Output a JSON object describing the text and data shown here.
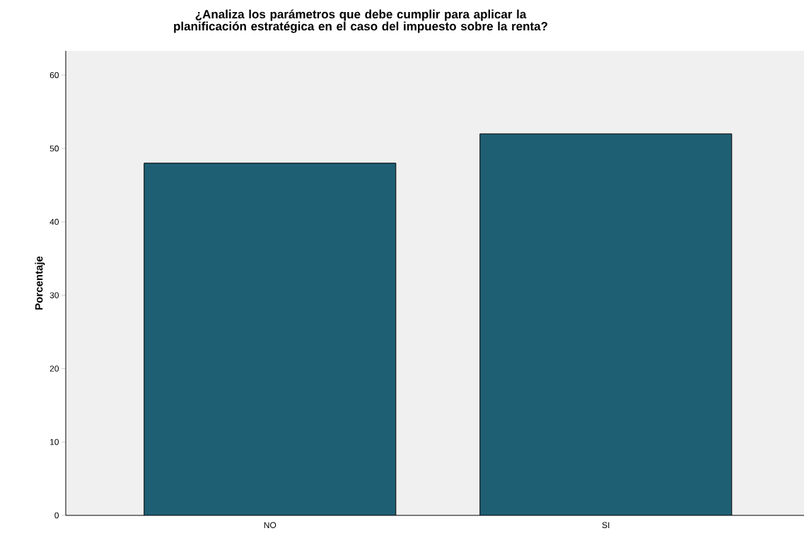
{
  "chart_data": {
    "type": "bar",
    "title": "¿Analiza los parámetros que debe cumplir para aplicar la planificación estratégica en el caso del impuesto sobre la renta?",
    "ylabel": "Porcentaje",
    "categories": [
      "NO",
      "SI"
    ],
    "values": [
      48,
      52
    ],
    "color": "#1f5f74",
    "ylim": [
      0,
      63.3
    ],
    "yticks": [
      0,
      10,
      20,
      30,
      40,
      50,
      60
    ],
    "grid": false
  }
}
